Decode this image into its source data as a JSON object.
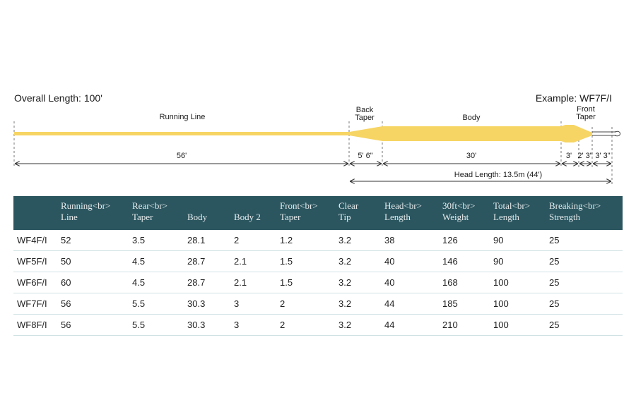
{
  "diagram": {
    "overall_length": "Overall Length: 100'",
    "example": "Example: WF7F/I",
    "sections": {
      "running_line": "Running Line",
      "back_taper_1": "Back",
      "back_taper_2": "Taper",
      "body": "Body",
      "front_taper_1": "Front",
      "front_taper_2": "Taper"
    },
    "dimensions": {
      "running_line": "56'",
      "back_taper": "5' 6\"",
      "body": "30'",
      "front_taper": "3'",
      "d2": "2' 3\"",
      "d3": "3' 3\"",
      "head_length": "Head Length: 13.5m (44')"
    },
    "line_color": "#f7d564"
  },
  "table": {
    "header_bg": "#2b5660",
    "columns": [
      {
        "line1": "",
        "line2": ""
      },
      {
        "line1": "Running<br>",
        "line2": "Line"
      },
      {
        "line1": "Rear<br>",
        "line2": "Taper"
      },
      {
        "line1": "",
        "line2": "Body"
      },
      {
        "line1": "",
        "line2": "Body 2"
      },
      {
        "line1": "Front<br>",
        "line2": "Taper"
      },
      {
        "line1": "Clear",
        "line2": "Tip"
      },
      {
        "line1": "Head<br>",
        "line2": "Length"
      },
      {
        "line1": "30ft<br>",
        "line2": "Weight"
      },
      {
        "line1": "Total<br>",
        "line2": "Length"
      },
      {
        "line1": "Breaking<br>",
        "line2": "Strength"
      }
    ],
    "rows": [
      [
        "WF4F/I",
        "52",
        "3.5",
        "28.1",
        "2",
        "1.2",
        "3.2",
        "38",
        "126",
        "90",
        "25"
      ],
      [
        "WF5F/I",
        "50",
        "4.5",
        "28.7",
        "2.1",
        "1.5",
        "3.2",
        "40",
        "146",
        "90",
        "25"
      ],
      [
        "WF6F/I",
        "60",
        "4.5",
        "28.7",
        "2.1",
        "1.5",
        "3.2",
        "40",
        "168",
        "100",
        "25"
      ],
      [
        "WF7F/I",
        "56",
        "5.5",
        "30.3",
        "3",
        "2",
        "3.2",
        "44",
        "185",
        "100",
        "25"
      ],
      [
        "WF8F/I",
        "56",
        "5.5",
        "30.3",
        "3",
        "2",
        "3.2",
        "44",
        "210",
        "100",
        "25"
      ]
    ]
  }
}
